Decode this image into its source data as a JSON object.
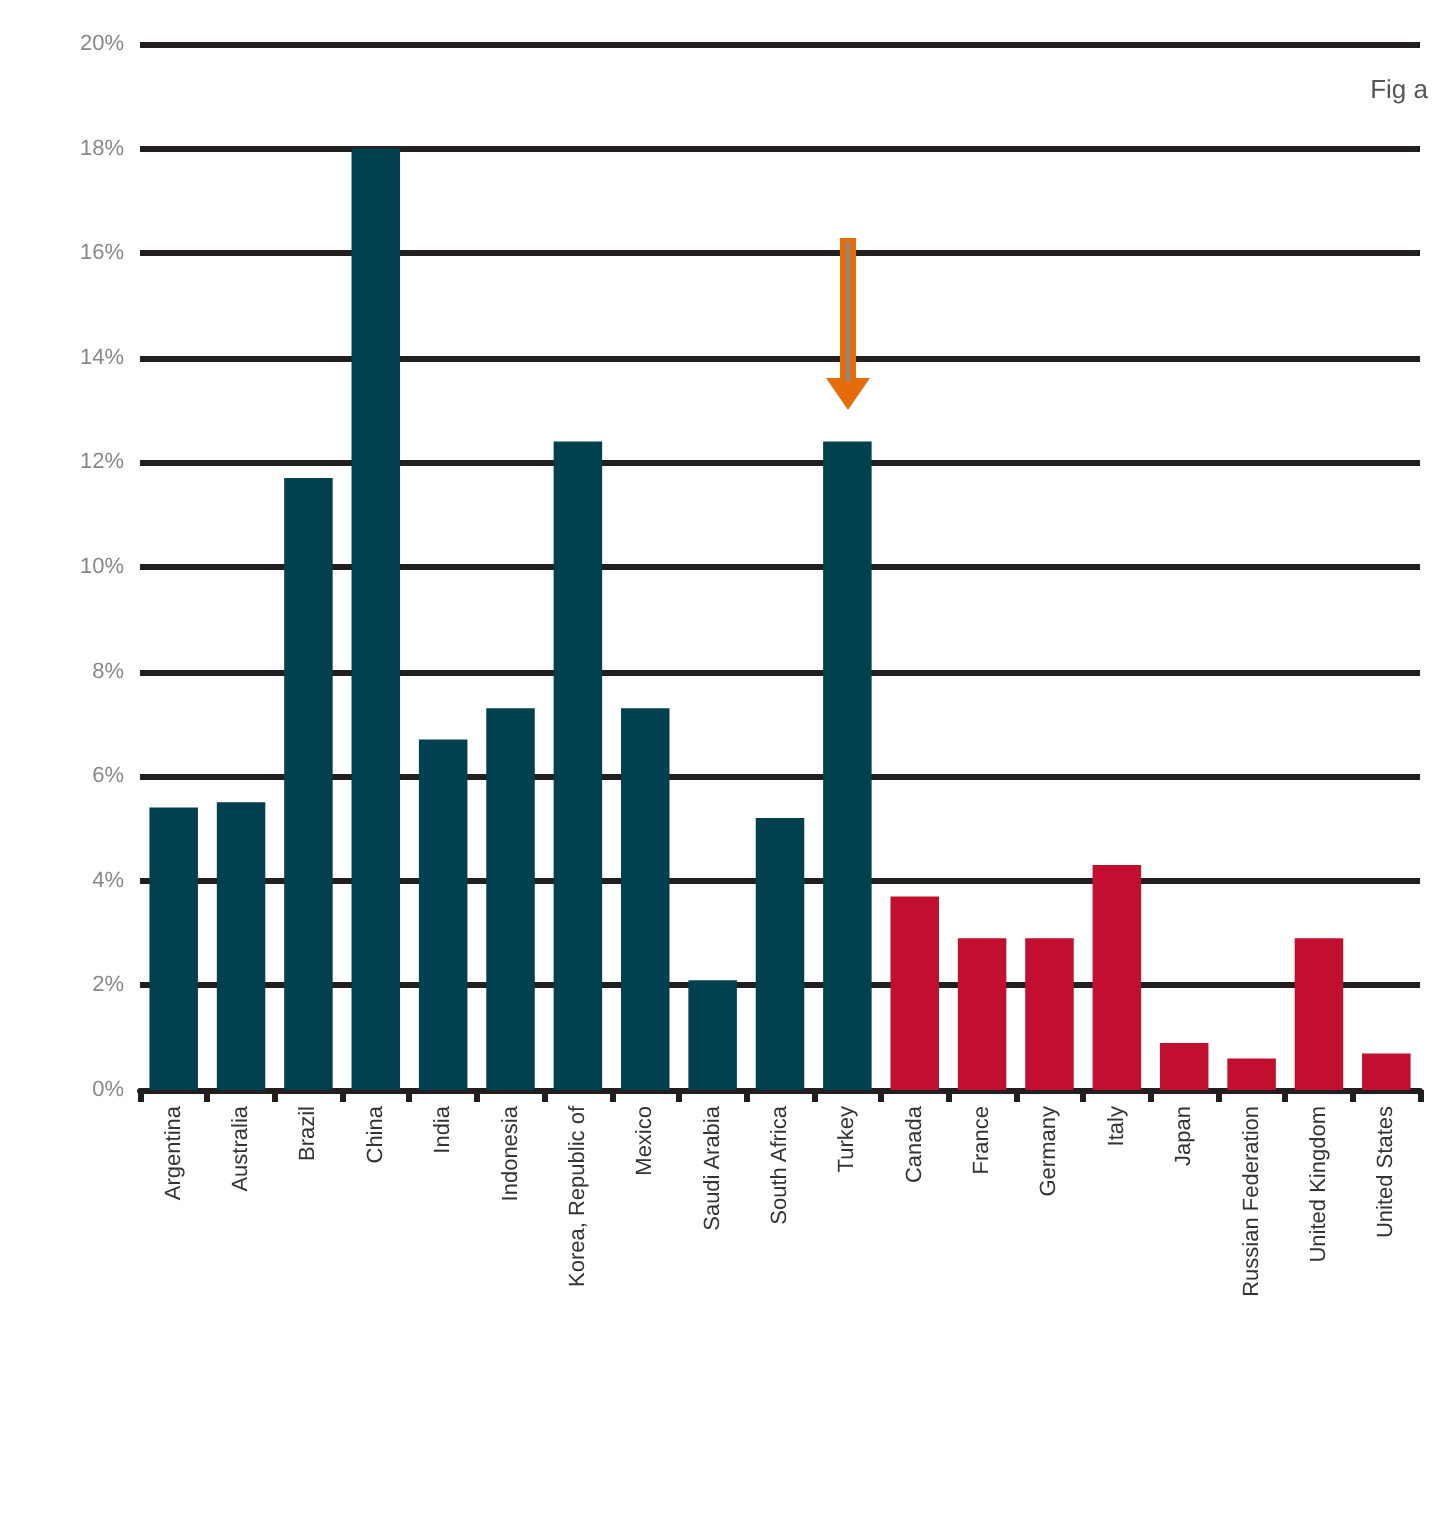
{
  "chart_data": {
    "type": "bar",
    "annotations": [
      "Fig a"
    ],
    "categories": [
      "Argentina",
      "Australia",
      "Brazil",
      "China",
      "India",
      "Indonesia",
      "Korea, Republic of",
      "Mexico",
      "Saudi Arabia",
      "South Africa",
      "Turkey",
      "Canada",
      "France",
      "Germany",
      "Italy",
      "Japan",
      "Russian Federation",
      "United Kingdom",
      "United States"
    ],
    "values": [
      5.4,
      5.5,
      11.7,
      18,
      6.7,
      7.3,
      12.4,
      7.3,
      2.1,
      5.2,
      12.4,
      3.7,
      2.9,
      2.9,
      4.3,
      0.9,
      0.6,
      2.9,
      0.7
    ],
    "colors": [
      "#00404f",
      "#00404f",
      "#00404f",
      "#00404f",
      "#00404f",
      "#00404f",
      "#00404f",
      "#00404f",
      "#00404f",
      "#00404f",
      "#00404f",
      "#c20f2f",
      "#c20f2f",
      "#c20f2f",
      "#c20f2f",
      "#c20f2f",
      "#c20f2f",
      "#c20f2f",
      "#c20f2f"
    ],
    "ylim": [
      0,
      20
    ],
    "yticks": [
      {
        "value": 0,
        "label": "0%"
      },
      {
        "value": 2,
        "label": "2%"
      },
      {
        "value": 4,
        "label": "4%"
      },
      {
        "value": 6,
        "label": "6%"
      },
      {
        "value": 8,
        "label": "8%"
      },
      {
        "value": 10,
        "label": "10%"
      },
      {
        "value": 12,
        "label": "12%"
      },
      {
        "value": 14,
        "label": "14%"
      },
      {
        "value": 16,
        "label": "16%"
      },
      {
        "value": 18,
        "label": "18%"
      },
      {
        "value": 20,
        "label": "20%"
      }
    ],
    "grid": "y"
  }
}
